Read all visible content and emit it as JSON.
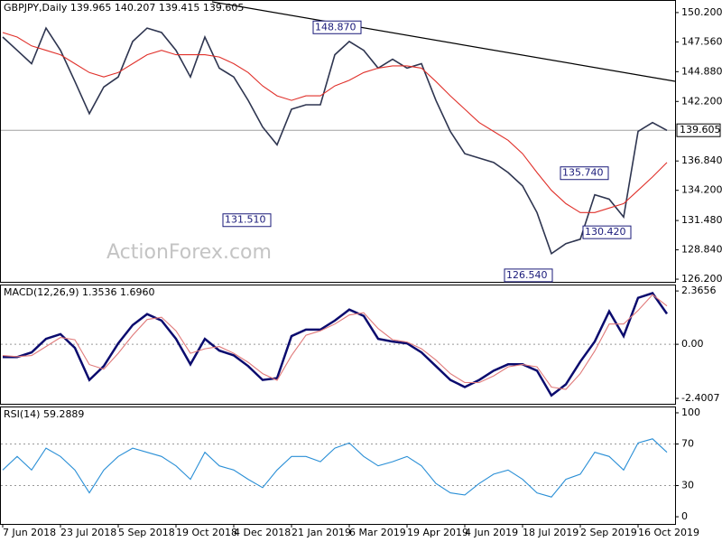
{
  "chart_data": [
    {
      "type": "line",
      "title": "GBPJPY,Daily  139.965 140.207 139.415 139.605",
      "ylim": [
        125.96,
        151.25
      ],
      "yticks": [
        {
          "value": 150.2,
          "label": "150.200"
        },
        {
          "value": 147.56,
          "label": "147.560"
        },
        {
          "value": 144.88,
          "label": "144.880"
        },
        {
          "value": 142.2,
          "label": "142.200"
        },
        {
          "value": 136.84,
          "label": "136.840"
        },
        {
          "value": 134.2,
          "label": "134.200"
        },
        {
          "value": 131.48,
          "label": "131.480"
        },
        {
          "value": 128.84,
          "label": "128.840"
        },
        {
          "value": 126.2,
          "label": "126.200"
        }
      ],
      "series": [
        {
          "color": "#2e3550",
          "values": [
            148.0,
            146.8,
            145.6,
            148.8,
            146.8,
            144.0,
            141.1,
            143.5,
            144.4,
            147.6,
            148.8,
            148.4,
            146.8,
            144.4,
            148.0,
            145.2,
            144.4,
            142.3,
            139.9,
            138.3,
            141.5,
            141.9,
            141.9,
            146.4,
            147.6,
            146.8,
            145.2,
            146.0,
            145.2,
            145.6,
            142.3,
            139.5,
            137.5,
            137.1,
            136.7,
            135.8,
            134.6,
            132.2,
            128.5,
            129.4,
            129.8,
            133.8,
            133.4,
            131.8,
            139.5,
            140.3,
            139.6
          ]
        },
        {
          "color": "#e0302a",
          "values": [
            148.4,
            148.0,
            147.2,
            146.8,
            146.4,
            145.6,
            144.8,
            144.4,
            144.8,
            145.6,
            146.4,
            146.8,
            146.4,
            146.4,
            146.4,
            146.2,
            145.6,
            144.8,
            143.6,
            142.7,
            142.3,
            142.7,
            142.7,
            143.6,
            144.1,
            144.8,
            145.2,
            145.4,
            145.4,
            145.2,
            144.0,
            142.7,
            141.5,
            140.3,
            139.5,
            138.7,
            137.5,
            135.8,
            134.2,
            133.0,
            132.2,
            132.2,
            132.6,
            133.0,
            134.2,
            135.4,
            136.7
          ]
        }
      ],
      "current_price": {
        "value": 139.605,
        "label": "139.605"
      },
      "annotations": [
        {
          "value": 131.51,
          "label": "131.510"
        },
        {
          "value": 148.87,
          "label": "148.870"
        },
        {
          "value": 135.74,
          "label": "135.740"
        },
        {
          "value": 130.42,
          "label": "130.420"
        },
        {
          "value": 126.54,
          "label": "126.540"
        }
      ],
      "watermark": "ActionForex.com"
    },
    {
      "type": "line",
      "title": "MACD(12,26,9) 1.3536 1.6960",
      "ylim": [
        -2.64,
        2.61
      ],
      "yticks": [
        2.3656,
        {
          "value": 0,
          "label": "0.00"
        },
        -2.4007
      ],
      "grid_lines": [
        0
      ],
      "series": [
        {
          "color": "#0b0b6e",
          "values": [
            -0.57,
            -0.57,
            -0.36,
            0.24,
            0.45,
            -0.16,
            -1.58,
            -0.97,
            0.04,
            0.85,
            1.34,
            1.05,
            0.24,
            -0.89,
            0.24,
            -0.28,
            -0.49,
            -0.97,
            -1.58,
            -1.5,
            0.36,
            0.65,
            0.65,
            1.05,
            1.54,
            1.26,
            0.24,
            0.12,
            0.04,
            -0.36,
            -0.97,
            -1.58,
            -1.9,
            -1.58,
            -1.17,
            -0.89,
            -0.89,
            -1.17,
            -2.27,
            -1.78,
            -0.77,
            0.12,
            1.46,
            0.36,
            2.06,
            2.27,
            1.35
          ]
        },
        {
          "color": "#e07a7a",
          "values": [
            -0.5,
            -0.55,
            -0.5,
            -0.1,
            0.3,
            0.2,
            -0.9,
            -1.1,
            -0.4,
            0.4,
            1.1,
            1.2,
            0.6,
            -0.4,
            -0.2,
            -0.1,
            -0.4,
            -0.8,
            -1.3,
            -1.6,
            -0.5,
            0.4,
            0.6,
            0.9,
            1.3,
            1.4,
            0.7,
            0.2,
            0.1,
            -0.2,
            -0.7,
            -1.3,
            -1.7,
            -1.7,
            -1.4,
            -1.0,
            -0.9,
            -1.0,
            -1.9,
            -2.0,
            -1.3,
            -0.3,
            0.9,
            0.9,
            1.5,
            2.2,
            1.7
          ]
        }
      ]
    },
    {
      "type": "line",
      "title": "RSI(14) 59.2889",
      "ylim": [
        -6.9,
        105.2
      ],
      "yticks": [
        100,
        70,
        30,
        0
      ],
      "grid_lines": [
        70,
        30
      ],
      "categories": [
        "7 Jun 2018",
        null,
        null,
        null,
        "23 Jul 2018",
        null,
        null,
        null,
        "5 Sep 2018",
        null,
        null,
        null,
        "19 Oct 2018",
        null,
        null,
        null,
        "4 Dec 2018",
        null,
        null,
        null,
        "21 Jan 2019",
        null,
        null,
        null,
        "6 Mar 2019",
        null,
        null,
        null,
        "19 Apr 2019",
        null,
        null,
        null,
        "4 Jun 2019",
        null,
        null,
        null,
        "18 Jul 2019",
        null,
        null,
        null,
        "2 Sep 2019",
        null,
        null,
        null,
        "16 Oct 2019",
        null,
        null
      ],
      "series": [
        {
          "color": "#2a8fd6",
          "values": [
            45,
            58,
            45,
            66,
            58,
            45,
            23,
            45,
            58,
            66,
            62,
            58,
            49,
            36,
            62,
            49,
            45,
            36,
            28,
            45,
            58,
            58,
            53,
            66,
            71,
            58,
            49,
            53,
            58,
            49,
            32,
            23,
            21,
            32,
            41,
            45,
            36,
            23,
            19,
            36,
            41,
            62,
            58,
            45,
            71,
            75,
            62
          ]
        }
      ]
    }
  ]
}
